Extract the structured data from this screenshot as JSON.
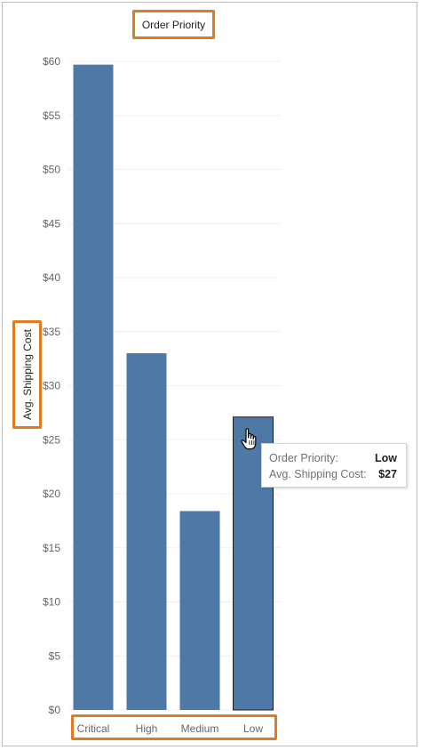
{
  "chart_data": {
    "type": "bar",
    "title": "Order Priority",
    "xlabel": "",
    "ylabel": "Avg. Shipping Cost",
    "categories": [
      "Critical",
      "High",
      "Medium",
      "Low"
    ],
    "values": [
      59.7,
      33.0,
      18.4,
      27.1
    ],
    "ylim": [
      0,
      60
    ],
    "yticks": [
      0,
      5,
      10,
      15,
      20,
      25,
      30,
      35,
      40,
      45,
      50,
      55,
      60
    ],
    "ytick_labels": [
      "$0",
      "$5",
      "$10",
      "$15",
      "$20",
      "$25",
      "$30",
      "$35",
      "$40",
      "$45",
      "$50",
      "$55",
      "$60"
    ],
    "grid": "horizontal",
    "bar_color": "#4e79a7",
    "highlight_color": "#e07b1f",
    "selected_category": "Low"
  },
  "tooltip": {
    "rows": [
      {
        "key": "Order Priority:",
        "value": "Low"
      },
      {
        "key": "Avg. Shipping Cost:",
        "value": "$27"
      }
    ]
  }
}
